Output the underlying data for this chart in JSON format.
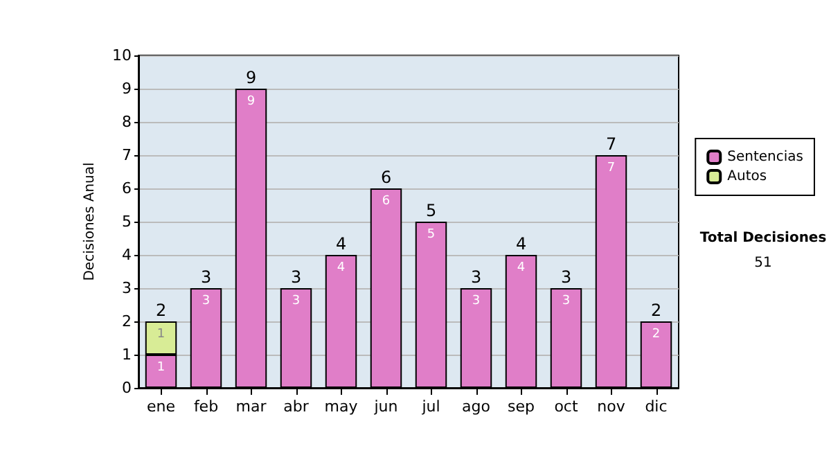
{
  "chart_data": {
    "type": "bar",
    "ylabel": "Decisiones Anual",
    "categories": [
      "ene",
      "feb",
      "mar",
      "abr",
      "may",
      "jun",
      "jul",
      "ago",
      "sep",
      "oct",
      "nov",
      "dic"
    ],
    "series": [
      {
        "name": "Sentencias",
        "color": "#e07ec8",
        "values": [
          1,
          3,
          9,
          3,
          4,
          6,
          5,
          3,
          4,
          3,
          7,
          2
        ],
        "value_labels": [
          "1",
          "3",
          "9",
          "3",
          "4",
          "6",
          "5",
          "3",
          "4",
          "3",
          "7",
          "2"
        ]
      },
      {
        "name": "Autos",
        "color": "#d8ec96",
        "values": [
          1,
          0,
          0,
          0,
          0,
          0,
          0,
          0,
          0,
          0,
          0,
          0
        ],
        "value_labels": [
          "1",
          null,
          null,
          null,
          null,
          null,
          null,
          null,
          null,
          null,
          null,
          null
        ]
      }
    ],
    "stacked": true,
    "totals": [
      "2",
      "3",
      "9",
      "3",
      "4",
      "6",
      "5",
      "3",
      "4",
      "3",
      "7",
      "2"
    ],
    "ylim": [
      0,
      10
    ],
    "yticks": [
      0,
      1,
      2,
      3,
      4,
      5,
      6,
      7,
      8,
      9,
      10
    ],
    "grid": "y",
    "legend": "right",
    "annotations": [
      "Total Decisiones",
      "51"
    ]
  }
}
